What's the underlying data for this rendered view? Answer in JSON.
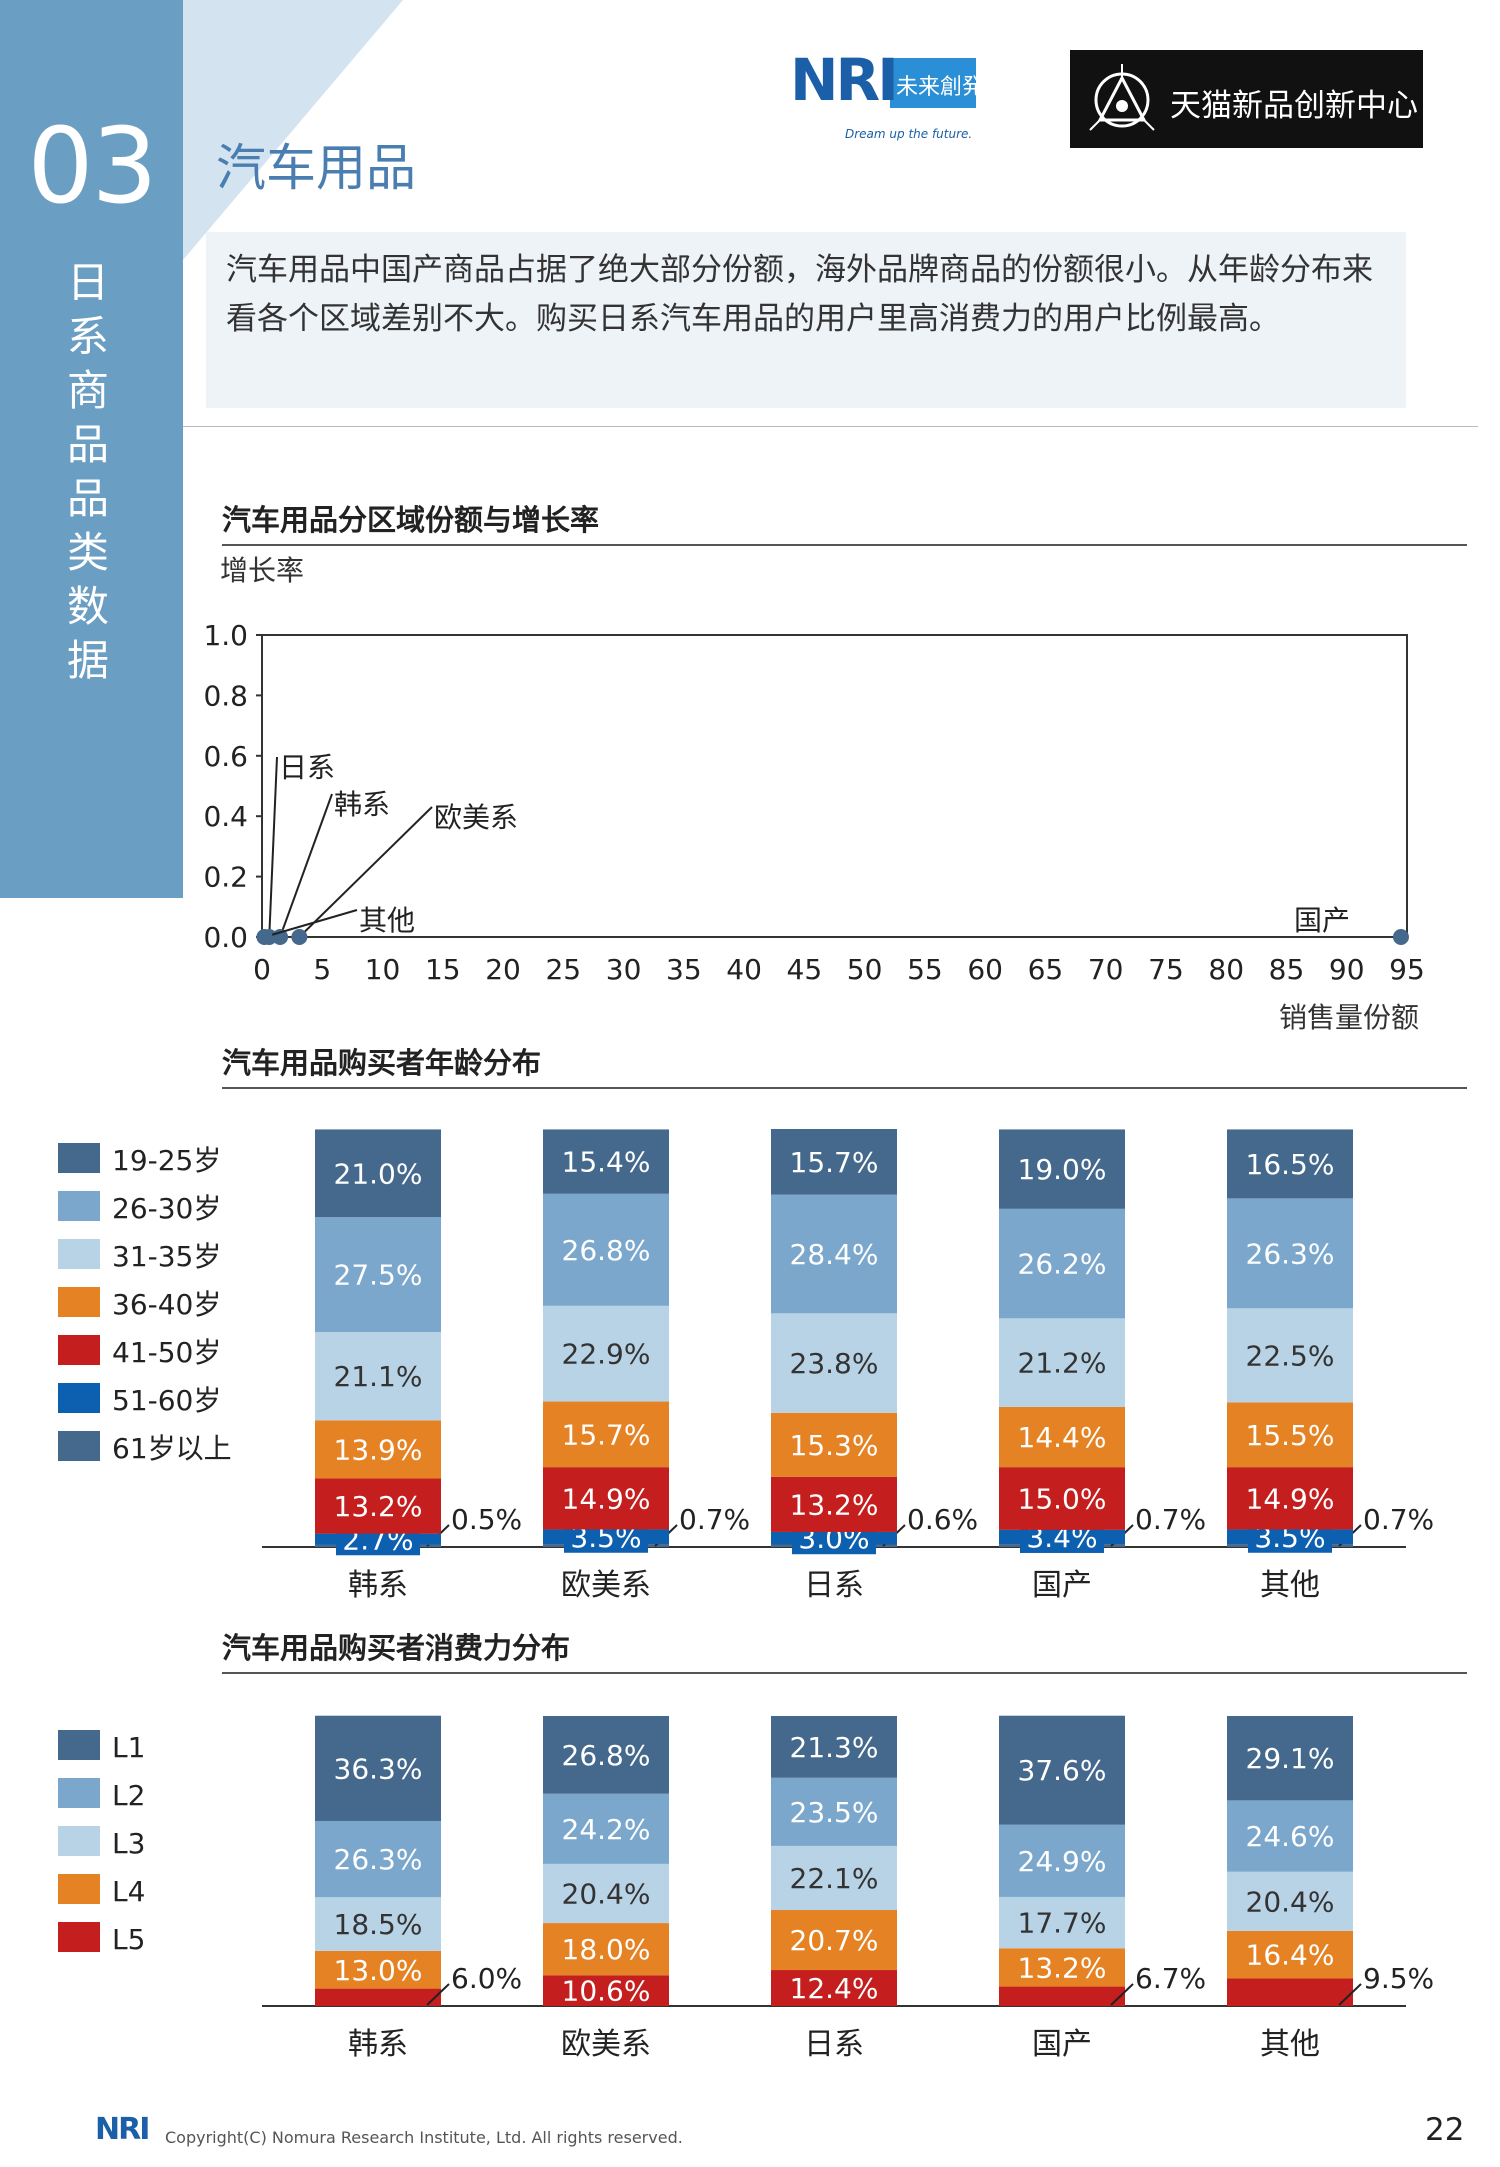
{
  "header": {
    "chapter_number": "03",
    "chapter_name": [
      "日",
      "系",
      "商",
      "品",
      "品",
      "类",
      "数",
      "据"
    ],
    "page_title": "汽车用品",
    "summary": "汽车用品中国产商品占据了绝大部分份额，海外品牌商品的份额很小。从年龄分布来看各个区域差别不大。购买日系汽车用品的用户里高消费力的用户比例最高。",
    "nri_logo": {
      "letters": "NRI",
      "jp_text": "未来創発",
      "tagline": "Dream up the future."
    },
    "tmall_logo": {
      "text": "天猫新品创新中心"
    }
  },
  "chart_data": [
    {
      "type": "scatter",
      "title": "汽车用品分区域份额与增长率",
      "ylabel": "增长率",
      "xlabel": "销售量份额",
      "xlim": [
        0,
        95
      ],
      "ylim": [
        0,
        1.0
      ],
      "x_ticks": [
        "0",
        "5",
        "10",
        "15",
        "20",
        "25",
        "30",
        "35",
        "40",
        "45",
        "50",
        "55",
        "60",
        "65",
        "70",
        "75",
        "80",
        "85",
        "90",
        "95"
      ],
      "y_ticks": [
        "0.0",
        "0.2",
        "0.4",
        "0.6",
        "0.8",
        "1.0"
      ],
      "points": [
        {
          "label": "日系",
          "x": 0.6,
          "y": 0.0
        },
        {
          "label": "韩系",
          "x": 1.5,
          "y": 0.0
        },
        {
          "label": "欧美系",
          "x": 3.1,
          "y": 0.0
        },
        {
          "label": "其他",
          "x": 0.2,
          "y": 0.0
        },
        {
          "label": "国产",
          "x": 94.5,
          "y": 0.0
        }
      ],
      "color": "#45698c"
    },
    {
      "type": "bar",
      "stacked": true,
      "title": "汽车用品购买者年龄分布",
      "categories": [
        "韩系",
        "欧美系",
        "日系",
        "国产",
        "其他"
      ],
      "legend": [
        "19-25岁",
        "26-30岁",
        "31-35岁",
        "36-40岁",
        "41-50岁",
        "51-60岁",
        "61岁以上"
      ],
      "colors": [
        "#45698c",
        "#7ba7cc",
        "#b9d3e6",
        "#e58324",
        "#c41e1e",
        "#0d5fb0",
        "#45698c"
      ],
      "series": [
        {
          "name": "19-25岁",
          "values": [
            21.0,
            15.4,
            15.7,
            19.0,
            16.5
          ]
        },
        {
          "name": "26-30岁",
          "values": [
            27.5,
            26.8,
            28.4,
            26.2,
            26.3
          ]
        },
        {
          "name": "31-35岁",
          "values": [
            21.1,
            22.9,
            23.8,
            21.2,
            22.5
          ]
        },
        {
          "name": "36-40岁",
          "values": [
            13.9,
            15.7,
            15.3,
            14.4,
            15.5
          ]
        },
        {
          "name": "41-50岁",
          "values": [
            13.2,
            14.9,
            13.2,
            15.0,
            14.9
          ]
        },
        {
          "name": "51-60岁",
          "values": [
            2.7,
            3.5,
            3.0,
            3.4,
            3.5
          ]
        },
        {
          "name": "61岁以上",
          "values": [
            0.5,
            0.7,
            0.6,
            0.7,
            0.7
          ]
        }
      ],
      "labels": [
        [
          "21.0%",
          "15.4%",
          "15.7%",
          "19.0%",
          "16.5%"
        ],
        [
          "27.5%",
          "26.8%",
          "28.4%",
          "26.2%",
          "26.3%"
        ],
        [
          "21.1%",
          "22.9%",
          "23.8%",
          "21.2%",
          "22.5%"
        ],
        [
          "13.9%",
          "15.7%",
          "15.3%",
          "14.4%",
          "15.5%"
        ],
        [
          "13.2%",
          "14.9%",
          "13.2%",
          "15.0%",
          "14.9%"
        ],
        [
          "2.7%",
          "3.5%",
          "3.0%",
          "3.4%",
          "3.5%"
        ],
        [
          "0.5%",
          "0.7%",
          "0.6%",
          "0.7%",
          "0.7%"
        ]
      ]
    },
    {
      "type": "bar",
      "stacked": true,
      "title": "汽车用品购买者消费力分布",
      "categories": [
        "韩系",
        "欧美系",
        "日系",
        "国产",
        "其他"
      ],
      "legend": [
        "L1",
        "L2",
        "L3",
        "L4",
        "L5"
      ],
      "colors": [
        "#45698c",
        "#7ba7cc",
        "#b9d3e6",
        "#e58324",
        "#c41e1e"
      ],
      "series": [
        {
          "name": "L1",
          "values": [
            36.3,
            26.8,
            21.3,
            37.6,
            29.1
          ]
        },
        {
          "name": "L2",
          "values": [
            26.3,
            24.2,
            23.5,
            24.9,
            24.6
          ]
        },
        {
          "name": "L3",
          "values": [
            18.5,
            20.4,
            22.1,
            17.7,
            20.4
          ]
        },
        {
          "name": "L4",
          "values": [
            13.0,
            18.0,
            20.7,
            13.2,
            16.4
          ]
        },
        {
          "name": "L5",
          "values": [
            6.0,
            10.6,
            12.4,
            6.7,
            9.5
          ]
        }
      ],
      "labels": [
        [
          "36.3%",
          "26.8%",
          "21.3%",
          "37.6%",
          "29.1%"
        ],
        [
          "26.3%",
          "24.2%",
          "23.5%",
          "24.9%",
          "24.6%"
        ],
        [
          "18.5%",
          "20.4%",
          "22.1%",
          "17.7%",
          "20.4%"
        ],
        [
          "13.0%",
          "18.0%",
          "20.7%",
          "13.2%",
          "16.4%"
        ],
        [
          "6.0%",
          "10.6%",
          "12.4%",
          "6.7%",
          "9.5%"
        ]
      ]
    }
  ],
  "footer": {
    "logo_text": "NRI",
    "copyright": "Copyright(C)  Nomura Research Institute,  Ltd.  All rights reserved.",
    "page_number": "22"
  }
}
